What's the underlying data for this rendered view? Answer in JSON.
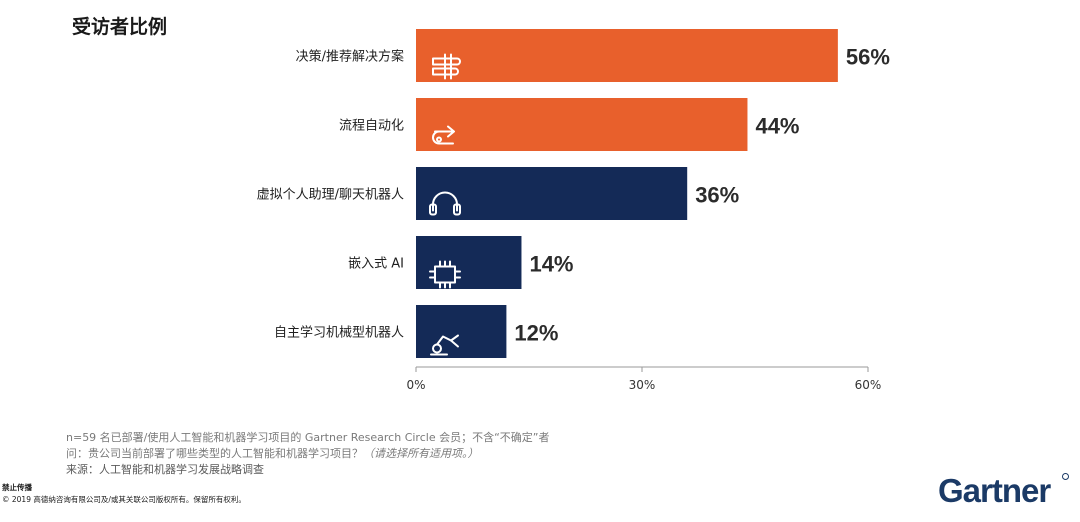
{
  "title": "受访者比例",
  "chart_data": {
    "type": "bar",
    "orientation": "horizontal",
    "categories": [
      "决策/推荐解决方案",
      "流程自动化",
      "虚拟个人助理/聊天机器人",
      "嵌入式 AI",
      "自主学习机械型机器人"
    ],
    "values": [
      56,
      44,
      36,
      14,
      12
    ],
    "value_labels": [
      "56%",
      "44%",
      "36%",
      "14%",
      "12%"
    ],
    "bar_colors": [
      "#e8602c",
      "#e8602c",
      "#142a57",
      "#142a57",
      "#142a57"
    ],
    "bar_icons": [
      "signpost-icon",
      "process-arrow-icon",
      "headset-icon",
      "chip-icon",
      "robot-arm-icon"
    ],
    "xlim": [
      0,
      60
    ],
    "x_ticks": [
      0,
      30,
      60
    ],
    "x_tick_labels": [
      "0%",
      "30%",
      "60%"
    ],
    "grid": false
  },
  "footnote": {
    "line1": "n=59 名已部署/使用人工智能和机器学习项目的 Gartner Research Circle 会员；不含“不确定”者",
    "line2_question": "问：贵公司当前部署了哪些类型的人工智能和机器学习项目？",
    "line2_note": "（请选择所有适用项。）",
    "line3": "来源：人工智能和机器学习发展战略调查"
  },
  "legal": {
    "restriction": "禁止传播",
    "copyright": "© 2019 高德纳咨询有限公司及/或其关联公司版权所有。保留所有权利。"
  },
  "logo": {
    "text": "Gartner"
  }
}
